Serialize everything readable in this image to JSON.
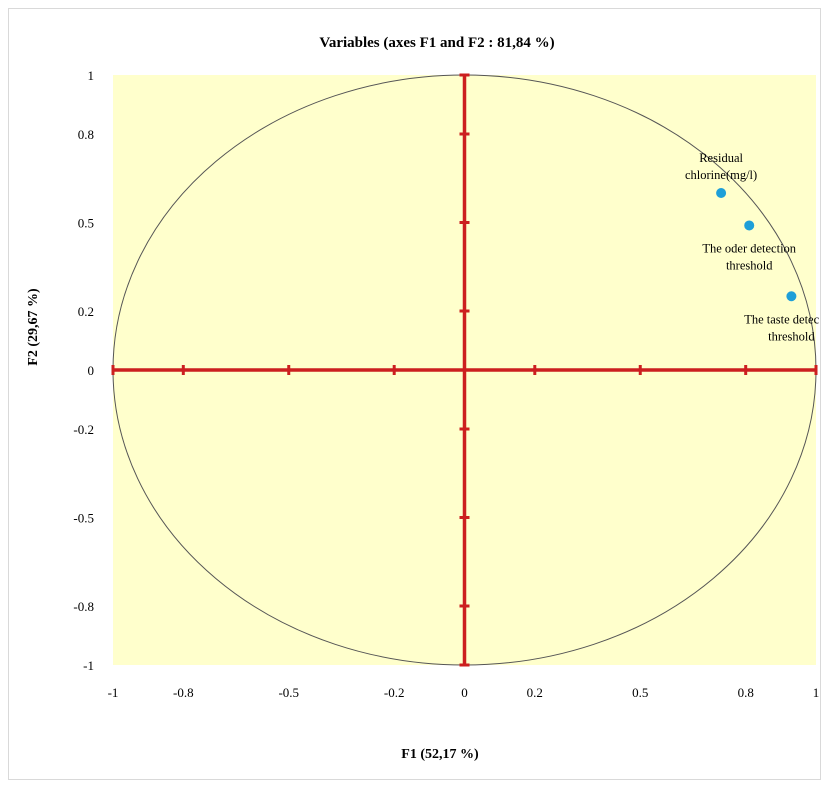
{
  "chart_data": {
    "type": "scatter",
    "title": "Variables (axes F1 and  F2 : 81,84 %)",
    "xlabel": "F1 (52,17 %)",
    "ylabel": "F2 (29,67 %)",
    "xlim": [
      -1,
      1
    ],
    "ylim": [
      -1,
      1
    ],
    "x_ticks": [
      -1,
      -0.8,
      -0.5,
      -0.2,
      0,
      0.2,
      0.5,
      0.8,
      1
    ],
    "x_tick_labels": [
      "-1",
      "-0.8",
      "-0.5",
      "-0.2",
      "0",
      "0.2",
      "0.5",
      "0.8",
      "1"
    ],
    "y_ticks": [
      1,
      0.8,
      0.5,
      0.2,
      0,
      -0.2,
      -0.5,
      -0.8,
      -1
    ],
    "y_tick_labels": [
      "1",
      "0.8",
      "0.5",
      "0.2",
      "0",
      "-0.2",
      "-0.5",
      "-0.8",
      "-1"
    ],
    "correlation_circle": true,
    "points": [
      {
        "label_lines": [
          "Residual",
          "chlorine(mg/l)"
        ],
        "x": 0.73,
        "y": 0.6,
        "label_side": "above"
      },
      {
        "label_lines": [
          "The oder detection",
          "threshold"
        ],
        "x": 0.81,
        "y": 0.49,
        "label_side": "below"
      },
      {
        "label_lines": [
          "The taste  detection",
          "threshold"
        ],
        "x": 0.93,
        "y": 0.25,
        "label_side": "below"
      }
    ],
    "colors": {
      "plot_background": "#ffffcc",
      "axes": "#cc1f1f",
      "circle": "#555555",
      "points": "#1e9fd8"
    }
  }
}
